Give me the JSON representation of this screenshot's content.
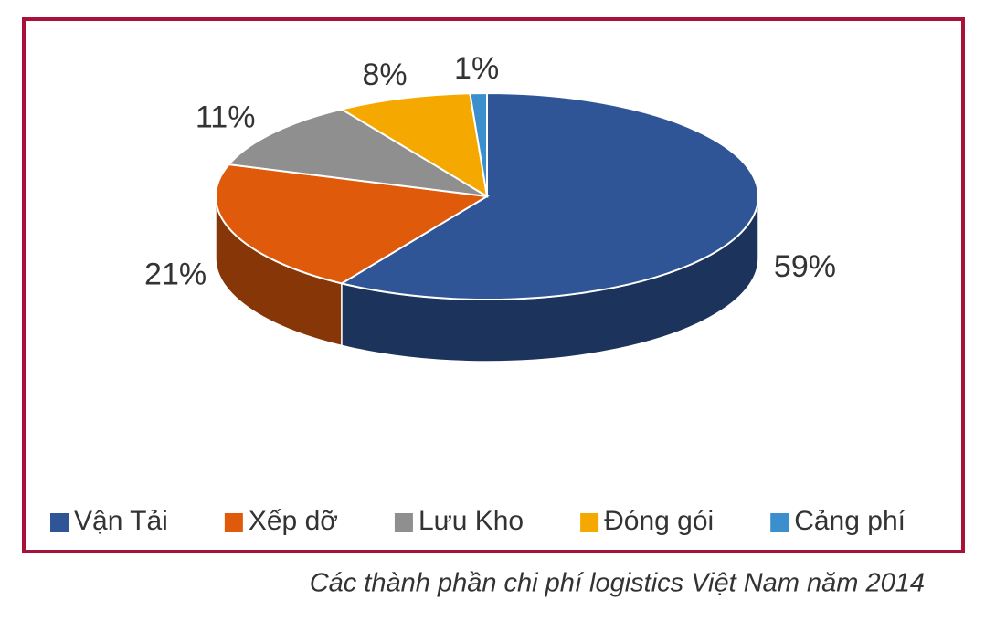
{
  "chart_data": {
    "type": "pie3d",
    "categories": [
      "Vận Tải",
      "Xếp dỡ",
      "Lưu Kho",
      "Đóng gói",
      "Cảng phí"
    ],
    "values": [
      59,
      21,
      11,
      8,
      1
    ],
    "value_labels": [
      "59%",
      "21%",
      "11%",
      "8%",
      "1%"
    ],
    "colors": [
      "#2f5597",
      "#e05a0c",
      "#8f8f8f",
      "#f5a800",
      "#3a8fcc"
    ],
    "legend": "bottom",
    "caption": "Các thành phần chi phí logistics Việt Nam năm 2014"
  }
}
